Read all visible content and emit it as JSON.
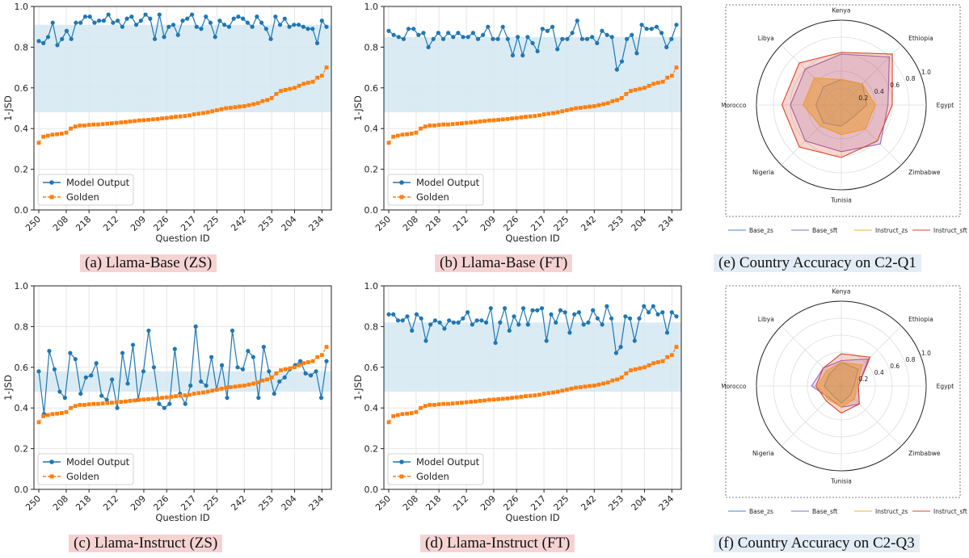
{
  "colors": {
    "model": "#1f77b4",
    "golden": "#ff7f0e",
    "band": "#d4e8f2",
    "radar": [
      "#4a86c5",
      "#9467bd",
      "#f2b233",
      "#d9452b"
    ]
  },
  "captions": {
    "a": "(a) Llama-Base (ZS)",
    "b": "(b) Llama-Base (FT)",
    "c": "(c) Llama-Instruct (ZS)",
    "d": "(d) Llama-Instruct (FT)",
    "e": "(e) Country Accuracy on C2-Q1",
    "f": "(f) Country Accuracy on C2-Q3"
  },
  "chart_data": [
    {
      "id": "a",
      "type": "line",
      "xlabel": "Question ID",
      "ylabel": "1-JSD",
      "ylim": [
        0,
        1
      ],
      "yticks": [
        "0.0",
        "0.2",
        "0.4",
        "0.6",
        "0.8",
        "1.0"
      ],
      "xtick_labels": [
        "250",
        "208",
        "218",
        "212",
        "209",
        "226",
        "217",
        "225",
        "242",
        "253",
        "204",
        "234"
      ],
      "band": [
        0.48,
        0.91
      ],
      "legend": [
        "Model Output",
        "Golden"
      ],
      "series": [
        {
          "name": "Model Output",
          "values": [
            0.83,
            0.82,
            0.85,
            0.92,
            0.81,
            0.84,
            0.88,
            0.84,
            0.92,
            0.92,
            0.95,
            0.95,
            0.92,
            0.93,
            0.93,
            0.96,
            0.92,
            0.93,
            0.9,
            0.94,
            0.95,
            0.91,
            0.93,
            0.96,
            0.94,
            0.84,
            0.96,
            0.85,
            0.9,
            0.91,
            0.86,
            0.93,
            0.94,
            0.96,
            0.9,
            0.89,
            0.95,
            0.92,
            0.85,
            0.93,
            0.91,
            0.9,
            0.94,
            0.95,
            0.94,
            0.92,
            0.9,
            0.95,
            0.92,
            0.89,
            0.84,
            0.95,
            0.91,
            0.94,
            0.9,
            0.91,
            0.91,
            0.9,
            0.89,
            0.89,
            0.82,
            0.93,
            0.9
          ]
        },
        {
          "name": "Golden",
          "values": [
            0.33,
            0.36,
            0.365,
            0.37,
            0.372,
            0.375,
            0.38,
            0.4,
            0.41,
            0.415,
            0.415,
            0.418,
            0.42,
            0.42,
            0.422,
            0.424,
            0.426,
            0.428,
            0.43,
            0.432,
            0.435,
            0.437,
            0.44,
            0.441,
            0.443,
            0.445,
            0.447,
            0.45,
            0.452,
            0.455,
            0.458,
            0.46,
            0.462,
            0.465,
            0.47,
            0.473,
            0.476,
            0.48,
            0.485,
            0.49,
            0.495,
            0.5,
            0.502,
            0.505,
            0.508,
            0.51,
            0.515,
            0.52,
            0.525,
            0.535,
            0.54,
            0.55,
            0.57,
            0.585,
            0.59,
            0.595,
            0.6,
            0.61,
            0.62,
            0.625,
            0.63,
            0.65,
            0.66,
            0.7
          ]
        }
      ]
    },
    {
      "id": "b",
      "type": "line",
      "xlabel": "Question ID",
      "ylabel": "1-JSD",
      "ylim": [
        0,
        1
      ],
      "yticks": [
        "0.0",
        "0.2",
        "0.4",
        "0.6",
        "0.8",
        "1.0"
      ],
      "xtick_labels": [
        "250",
        "208",
        "218",
        "212",
        "209",
        "226",
        "217",
        "225",
        "242",
        "253",
        "204",
        "234"
      ],
      "band": [
        0.48,
        0.85
      ],
      "legend": [
        "Model Output",
        "Golden"
      ],
      "series": [
        {
          "name": "Model Output",
          "values": [
            0.88,
            0.86,
            0.85,
            0.84,
            0.89,
            0.89,
            0.86,
            0.87,
            0.8,
            0.84,
            0.87,
            0.84,
            0.87,
            0.85,
            0.87,
            0.85,
            0.85,
            0.87,
            0.84,
            0.86,
            0.9,
            0.84,
            0.84,
            0.9,
            0.84,
            0.76,
            0.85,
            0.76,
            0.85,
            0.82,
            0.78,
            0.89,
            0.88,
            0.9,
            0.79,
            0.84,
            0.84,
            0.87,
            0.93,
            0.84,
            0.84,
            0.85,
            0.82,
            0.88,
            0.86,
            0.85,
            0.69,
            0.73,
            0.84,
            0.86,
            0.77,
            0.91,
            0.89,
            0.89,
            0.9,
            0.87,
            0.8,
            0.84,
            0.91
          ]
        },
        {
          "name": "Golden",
          "values": [
            0.33,
            0.36,
            0.365,
            0.37,
            0.372,
            0.375,
            0.38,
            0.4,
            0.41,
            0.415,
            0.415,
            0.418,
            0.42,
            0.42,
            0.422,
            0.424,
            0.426,
            0.428,
            0.43,
            0.432,
            0.435,
            0.437,
            0.44,
            0.441,
            0.443,
            0.445,
            0.447,
            0.45,
            0.452,
            0.455,
            0.458,
            0.46,
            0.462,
            0.465,
            0.47,
            0.473,
            0.476,
            0.48,
            0.485,
            0.49,
            0.495,
            0.5,
            0.502,
            0.505,
            0.508,
            0.51,
            0.515,
            0.52,
            0.525,
            0.535,
            0.54,
            0.55,
            0.57,
            0.585,
            0.59,
            0.595,
            0.6,
            0.61,
            0.62,
            0.625,
            0.63,
            0.65,
            0.66,
            0.7
          ]
        }
      ]
    },
    {
      "id": "c",
      "type": "line",
      "xlabel": "Question ID",
      "ylabel": "1-JSD",
      "ylim": [
        0,
        1
      ],
      "yticks": [
        "0.0",
        "0.2",
        "0.4",
        "0.6",
        "0.8",
        "1.0"
      ],
      "xtick_labels": [
        "250",
        "208",
        "218",
        "212",
        "209",
        "226",
        "217",
        "225",
        "242",
        "253",
        "204",
        "234"
      ],
      "band": [
        0.48,
        0.58
      ],
      "legend": [
        "Model Output",
        "Golden"
      ],
      "series": [
        {
          "name": "Model Output",
          "values": [
            0.58,
            0.37,
            0.68,
            0.59,
            0.48,
            0.45,
            0.67,
            0.64,
            0.47,
            0.55,
            0.56,
            0.62,
            0.46,
            0.44,
            0.54,
            0.4,
            0.67,
            0.52,
            0.71,
            0.44,
            0.58,
            0.78,
            0.6,
            0.42,
            0.4,
            0.42,
            0.69,
            0.47,
            0.42,
            0.51,
            0.8,
            0.53,
            0.51,
            0.65,
            0.49,
            0.61,
            0.45,
            0.78,
            0.6,
            0.59,
            0.68,
            0.65,
            0.45,
            0.7,
            0.58,
            0.47,
            0.53,
            0.55,
            0.59,
            0.61,
            0.63,
            0.57,
            0.56,
            0.58,
            0.45,
            0.63
          ]
        },
        {
          "name": "Golden",
          "values": [
            0.33,
            0.36,
            0.365,
            0.37,
            0.372,
            0.375,
            0.38,
            0.4,
            0.41,
            0.415,
            0.415,
            0.418,
            0.42,
            0.42,
            0.422,
            0.424,
            0.426,
            0.428,
            0.43,
            0.432,
            0.435,
            0.437,
            0.44,
            0.441,
            0.443,
            0.445,
            0.447,
            0.45,
            0.452,
            0.455,
            0.458,
            0.46,
            0.462,
            0.465,
            0.47,
            0.473,
            0.476,
            0.48,
            0.485,
            0.49,
            0.495,
            0.5,
            0.502,
            0.505,
            0.508,
            0.51,
            0.515,
            0.52,
            0.525,
            0.535,
            0.54,
            0.55,
            0.57,
            0.585,
            0.59,
            0.595,
            0.6,
            0.61,
            0.62,
            0.625,
            0.63,
            0.65,
            0.66,
            0.7
          ]
        }
      ]
    },
    {
      "id": "d",
      "type": "line",
      "xlabel": "Question ID",
      "ylabel": "1-JSD",
      "ylim": [
        0,
        1
      ],
      "yticks": [
        "0.0",
        "0.2",
        "0.4",
        "0.6",
        "0.8",
        "1.0"
      ],
      "xtick_labels": [
        "250",
        "208",
        "218",
        "212",
        "209",
        "226",
        "217",
        "225",
        "242",
        "253",
        "204",
        "234"
      ],
      "band": [
        0.48,
        0.82
      ],
      "legend": [
        "Model Output",
        "Golden"
      ],
      "series": [
        {
          "name": "Model Output",
          "values": [
            0.86,
            0.86,
            0.83,
            0.83,
            0.85,
            0.78,
            0.86,
            0.84,
            0.73,
            0.81,
            0.83,
            0.82,
            0.79,
            0.83,
            0.82,
            0.82,
            0.84,
            0.87,
            0.81,
            0.83,
            0.83,
            0.82,
            0.89,
            0.72,
            0.82,
            0.89,
            0.78,
            0.85,
            0.81,
            0.89,
            0.81,
            0.88,
            0.88,
            0.89,
            0.73,
            0.86,
            0.82,
            0.88,
            0.87,
            0.77,
            0.86,
            0.87,
            0.81,
            0.82,
            0.88,
            0.84,
            0.81,
            0.9,
            0.84,
            0.67,
            0.7,
            0.85,
            0.84,
            0.73,
            0.84,
            0.9,
            0.87,
            0.9,
            0.86,
            0.87,
            0.77,
            0.87,
            0.85
          ]
        },
        {
          "name": "Golden",
          "values": [
            0.33,
            0.36,
            0.365,
            0.37,
            0.372,
            0.375,
            0.38,
            0.4,
            0.41,
            0.415,
            0.415,
            0.418,
            0.42,
            0.42,
            0.422,
            0.424,
            0.426,
            0.428,
            0.43,
            0.432,
            0.435,
            0.437,
            0.44,
            0.441,
            0.443,
            0.445,
            0.447,
            0.45,
            0.452,
            0.455,
            0.458,
            0.46,
            0.462,
            0.465,
            0.47,
            0.473,
            0.476,
            0.48,
            0.485,
            0.49,
            0.495,
            0.5,
            0.502,
            0.505,
            0.508,
            0.51,
            0.515,
            0.52,
            0.525,
            0.535,
            0.54,
            0.55,
            0.57,
            0.585,
            0.59,
            0.595,
            0.6,
            0.61,
            0.62,
            0.625,
            0.63,
            0.65,
            0.66,
            0.7
          ]
        }
      ]
    },
    {
      "id": "e",
      "type": "radar",
      "categories": [
        "Egypt",
        "Ethiopia",
        "Kenya",
        "Libya",
        "Morocco",
        "Nigeria",
        "Tunisia",
        "Zimbabwe"
      ],
      "rticks": [
        "0.2",
        "0.4",
        "0.6",
        "0.8",
        "1.0"
      ],
      "legend": [
        "Base_zs",
        "Base_sft",
        "Instruct_zs",
        "Instruct_sft"
      ],
      "series": [
        {
          "name": "Base_zs",
          "values": [
            0.3,
            0.35,
            0.3,
            0.3,
            0.3,
            0.3,
            0.25,
            0.2
          ]
        },
        {
          "name": "Base_sft",
          "values": [
            0.55,
            0.8,
            0.6,
            0.6,
            0.6,
            0.6,
            0.55,
            0.65
          ]
        },
        {
          "name": "Instruct_zs",
          "values": [
            0.4,
            0.35,
            0.3,
            0.45,
            0.45,
            0.35,
            0.35,
            0.4
          ]
        },
        {
          "name": "Instruct_sft",
          "values": [
            0.6,
            0.85,
            0.62,
            0.7,
            0.7,
            0.7,
            0.62,
            0.6
          ]
        }
      ]
    },
    {
      "id": "f",
      "type": "radar",
      "categories": [
        "Egypt",
        "Ethiopia",
        "Kenya",
        "Libya",
        "Morocco",
        "Nigeria",
        "Tunisia",
        "Zimbabwe"
      ],
      "rticks": [
        "0.2",
        "0.4",
        "0.6",
        "0.8",
        "1.0"
      ],
      "legend": [
        "Base_zs",
        "Base_sft",
        "Instruct_zs",
        "Instruct_sft"
      ],
      "series": [
        {
          "name": "Base_zs",
          "values": [
            0.15,
            0.28,
            0.28,
            0.2,
            0.2,
            0.15,
            0.2,
            0.15
          ]
        },
        {
          "name": "Base_sft",
          "values": [
            0.2,
            0.45,
            0.3,
            0.3,
            0.35,
            0.2,
            0.25,
            0.3
          ]
        },
        {
          "name": "Instruct_zs",
          "values": [
            0.18,
            0.35,
            0.28,
            0.25,
            0.28,
            0.22,
            0.25,
            0.22
          ]
        },
        {
          "name": "Instruct_sft",
          "values": [
            0.2,
            0.48,
            0.38,
            0.3,
            0.3,
            0.25,
            0.32,
            0.3
          ]
        }
      ]
    }
  ]
}
